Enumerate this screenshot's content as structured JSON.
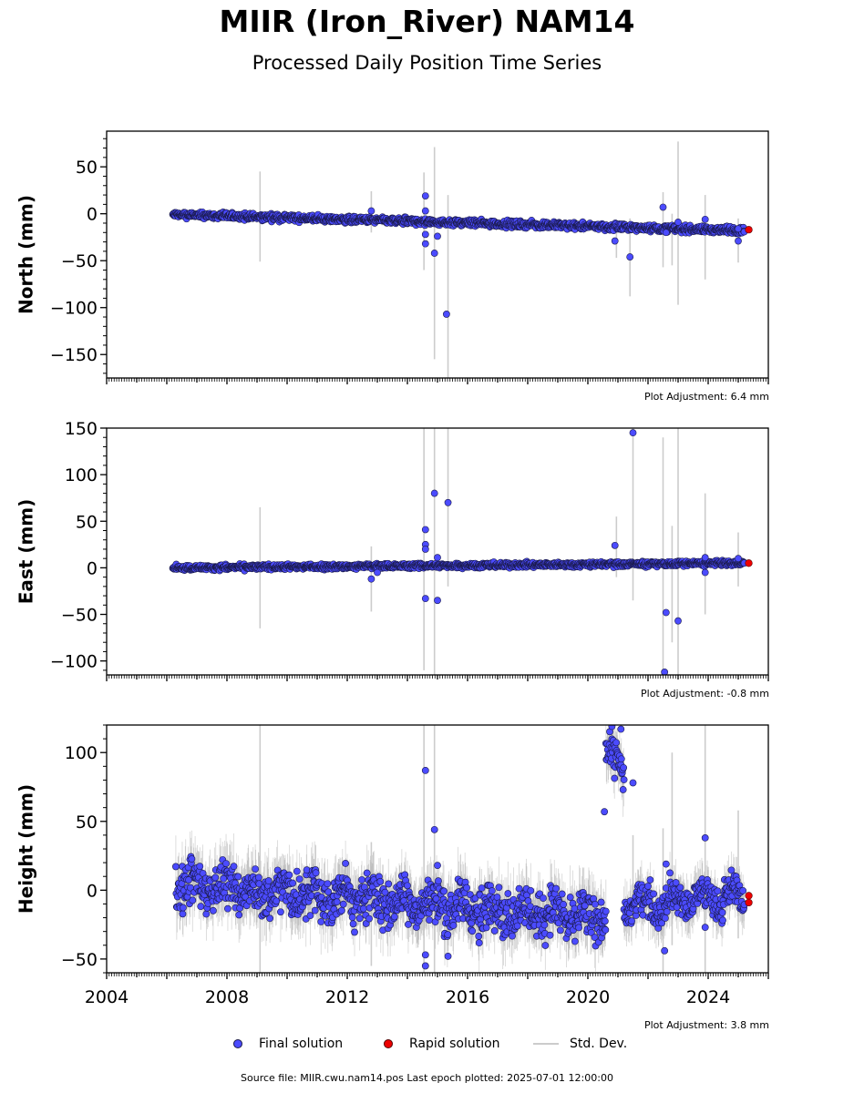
{
  "header": {
    "title": "MIIR (Iron_River) NAM14",
    "subtitle": "Processed Daily Position Time Series"
  },
  "legend": {
    "final": "Final solution",
    "rapid": "Rapid solution",
    "std": "Std. Dev."
  },
  "footer": "Source file: MIIR.cwu.nam14.pos  Last epoch plotted: 2025-07-01 12:00:00",
  "colors": {
    "final": "#4b4bff",
    "final_edge": "#1a1a4a",
    "rapid": "#ee0000",
    "std": "#bbbbbb"
  },
  "chart_data": [
    {
      "type": "scatter",
      "ylabel": "North (mm)",
      "adjustment": "Plot Adjustment: 6.4 mm",
      "xlim": [
        2004,
        2026
      ],
      "ylim": [
        -175,
        88
      ],
      "yticks": [
        50,
        0,
        -50,
        -100,
        -150
      ],
      "ytick_labels": [
        "50",
        "0",
        "−50",
        "−100",
        "−150"
      ],
      "trend": {
        "x": [
          2006.2,
          2025.2
        ],
        "y": [
          -1,
          -18
        ],
        "noise": 2.5
      },
      "series": [
        {
          "name": "Final solution",
          "points": [
            [
              2014.6,
              19
            ],
            [
              2014.6,
              3
            ],
            [
              2014.6,
              -22
            ],
            [
              2014.6,
              -32
            ],
            [
              2014.9,
              -42
            ],
            [
              2015.0,
              -24
            ],
            [
              2015.3,
              -107
            ],
            [
              2012.8,
              3
            ],
            [
              2020.9,
              -29
            ],
            [
              2021.4,
              -46
            ],
            [
              2022.5,
              7
            ],
            [
              2022.6,
              -20
            ],
            [
              2023.0,
              -9
            ],
            [
              2023.9,
              -6
            ],
            [
              2025.0,
              -29
            ],
            [
              2025.0,
              -16
            ]
          ]
        },
        {
          "name": "Rapid solution",
          "points": [
            [
              2025.35,
              -17
            ]
          ]
        }
      ],
      "error_bars": [
        [
          2009.1,
          -51,
          45
        ],
        [
          2012.8,
          -20,
          24
        ],
        [
          2014.55,
          -60,
          44
        ],
        [
          2014.9,
          -155,
          71
        ],
        [
          2015.35,
          -175,
          20
        ],
        [
          2020.95,
          -47,
          -10
        ],
        [
          2021.4,
          -88,
          -5
        ],
        [
          2022.5,
          -57,
          23
        ],
        [
          2022.8,
          -55,
          0
        ],
        [
          2023.0,
          -97,
          77
        ],
        [
          2023.9,
          -70,
          20
        ],
        [
          2025.0,
          -52,
          -5
        ]
      ]
    },
    {
      "type": "scatter",
      "ylabel": "East (mm)",
      "adjustment": "Plot Adjustment: -0.8 mm",
      "xlim": [
        2004,
        2026
      ],
      "ylim": [
        -115,
        150
      ],
      "yticks": [
        150,
        100,
        50,
        0,
        -50,
        -100
      ],
      "ytick_labels": [
        "150",
        "100",
        "50",
        "0",
        "−50",
        "−100"
      ],
      "trend": {
        "x": [
          2006.2,
          2025.2
        ],
        "y": [
          0,
          5
        ],
        "noise": 2.0
      },
      "series": [
        {
          "name": "Final solution",
          "points": [
            [
              2014.6,
              41
            ],
            [
              2014.6,
              25
            ],
            [
              2014.6,
              20
            ],
            [
              2014.6,
              -33
            ],
            [
              2014.9,
              80
            ],
            [
              2015.0,
              11
            ],
            [
              2015.0,
              -35
            ],
            [
              2015.35,
              70
            ],
            [
              2012.8,
              -12
            ],
            [
              2013.0,
              -5
            ],
            [
              2020.9,
              24
            ],
            [
              2021.5,
              145
            ],
            [
              2022.6,
              -48
            ],
            [
              2022.55,
              -112
            ],
            [
              2023.0,
              -57
            ],
            [
              2023.9,
              11
            ],
            [
              2023.9,
              -5
            ],
            [
              2025.0,
              10
            ]
          ]
        },
        {
          "name": "Rapid solution",
          "points": [
            [
              2025.35,
              5
            ]
          ]
        }
      ],
      "error_bars": [
        [
          2009.1,
          -65,
          65
        ],
        [
          2012.8,
          -47,
          23
        ],
        [
          2014.55,
          -110,
          150
        ],
        [
          2014.9,
          -115,
          150
        ],
        [
          2015.35,
          -20,
          150
        ],
        [
          2020.95,
          -10,
          55
        ],
        [
          2021.5,
          -35,
          150
        ],
        [
          2022.5,
          -115,
          140
        ],
        [
          2022.8,
          -80,
          45
        ],
        [
          2023.0,
          -115,
          150
        ],
        [
          2023.9,
          -50,
          80
        ],
        [
          2025.0,
          -20,
          38
        ]
      ]
    },
    {
      "type": "scatter",
      "ylabel": "Height (mm)",
      "adjustment": "Plot Adjustment: 3.8 mm",
      "xlim": [
        2004,
        2026
      ],
      "ylim": [
        -60,
        120
      ],
      "xticks": [
        2004,
        2008,
        2012,
        2016,
        2020,
        2024
      ],
      "xtick_labels": [
        "2004",
        "2008",
        "2012",
        "2016",
        "2020",
        "2024"
      ],
      "yticks": [
        100,
        50,
        0,
        -50
      ],
      "ytick_labels": [
        "100",
        "50",
        "0",
        "−50"
      ],
      "trend_segments": [
        {
          "x": [
            2006.3,
            2020.6
          ],
          "y": [
            4,
            -20
          ],
          "noise": 12
        },
        {
          "x": [
            2020.6,
            2021.2
          ],
          "y": [
            100,
            85
          ],
          "noise": 10
        },
        {
          "x": [
            2021.2,
            2025.2
          ],
          "y": [
            -10,
            -4
          ],
          "noise": 9
        }
      ],
      "series": [
        {
          "name": "Final solution",
          "points": [
            [
              2014.6,
              87
            ],
            [
              2014.6,
              -47
            ],
            [
              2014.6,
              -55
            ],
            [
              2014.9,
              44
            ],
            [
              2015.0,
              18
            ],
            [
              2015.35,
              -48
            ],
            [
              2020.55,
              57
            ],
            [
              2020.8,
              119
            ],
            [
              2021.1,
              117
            ],
            [
              2021.5,
              78
            ],
            [
              2022.55,
              -44
            ],
            [
              2022.6,
              19
            ],
            [
              2023.9,
              38
            ],
            [
              2023.9,
              -27
            ]
          ]
        },
        {
          "name": "Rapid solution",
          "points": [
            [
              2025.35,
              -4
            ],
            [
              2025.35,
              -9
            ]
          ]
        }
      ],
      "error_bars": [
        [
          2009.1,
          -60,
          120
        ],
        [
          2012.8,
          -55,
          35
        ],
        [
          2014.55,
          -60,
          120
        ],
        [
          2014.9,
          -60,
          120
        ],
        [
          2015.35,
          -40,
          5
        ],
        [
          2021.5,
          -20,
          40
        ],
        [
          2022.5,
          -60,
          45
        ],
        [
          2022.8,
          -40,
          100
        ],
        [
          2023.9,
          -60,
          120
        ],
        [
          2025.0,
          -35,
          58
        ]
      ]
    }
  ]
}
